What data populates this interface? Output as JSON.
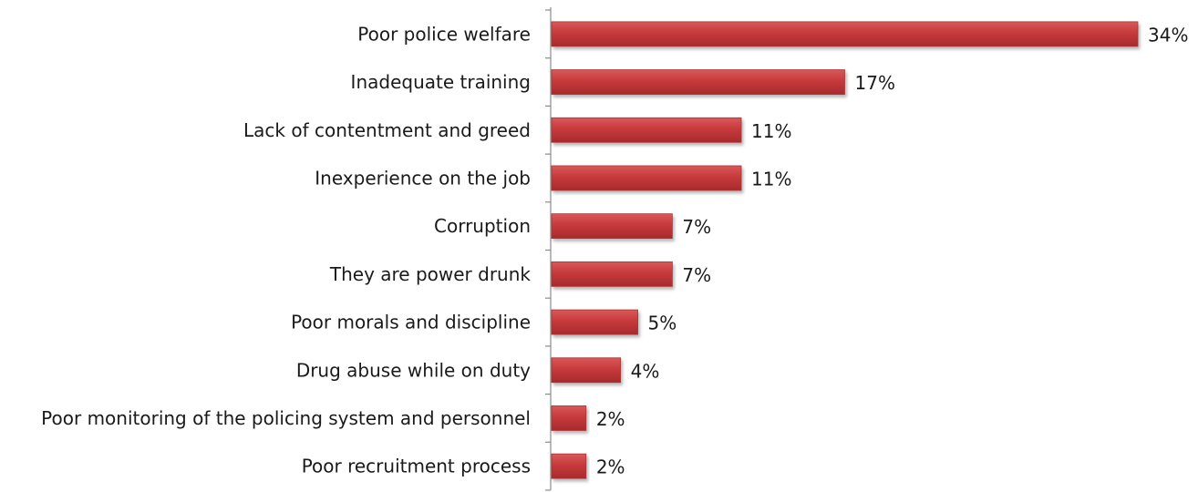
{
  "chart_data": {
    "type": "bar",
    "orientation": "horizontal",
    "categories": [
      "Poor police welfare",
      "Inadequate training",
      "Lack of contentment and greed",
      "Inexperience on the job",
      "Corruption",
      "They are power drunk",
      "Poor morals and discipline",
      "Drug abuse while on duty",
      "Poor monitoring of the policing system and personnel",
      "Poor recruitment process"
    ],
    "values": [
      34,
      17,
      11,
      11,
      7,
      7,
      5,
      4,
      2,
      2
    ],
    "value_labels": [
      "34%",
      "17%",
      "11%",
      "11%",
      "7%",
      "7%",
      "5%",
      "4%",
      "2%",
      "2%"
    ],
    "unit": "%",
    "xlim": [
      0,
      34
    ],
    "grid": false,
    "legend": "none",
    "bar_color": "#c0393b"
  }
}
